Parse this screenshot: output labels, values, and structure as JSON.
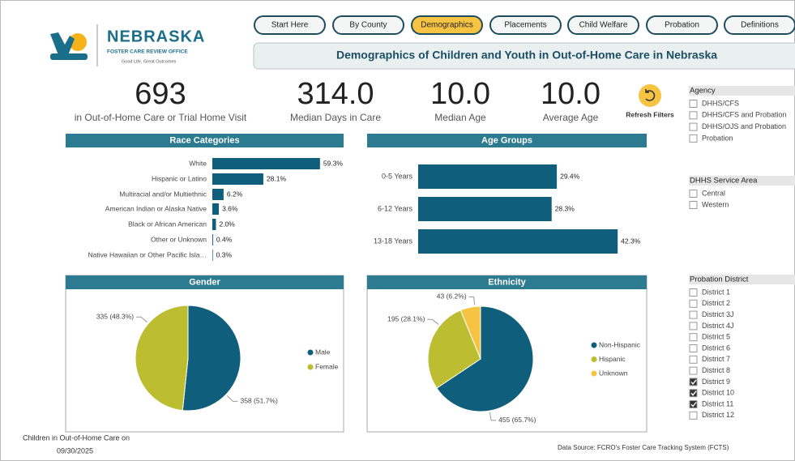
{
  "header": {
    "logo_name": "NEBRASKA",
    "logo_office": "FOSTER CARE REVIEW OFFICE",
    "logo_tagline": "Good Life, Great Outcomes"
  },
  "nav": {
    "items": [
      "Start Here",
      "By County",
      "Demographics",
      "Placements",
      "Child Welfare",
      "Probation",
      "Definitions"
    ],
    "active": 2
  },
  "page_title": "Demographics of Children and Youth in Out-of-Home Care in Nebraska",
  "kpis": [
    {
      "value": "693",
      "caption": "in Out-of-Home Care or Trial Home Visit"
    },
    {
      "value": "314.0",
      "caption": "Median Days in Care"
    },
    {
      "value": "10.0",
      "caption": "Median Age"
    },
    {
      "value": "10.0",
      "caption": "Average Age"
    }
  ],
  "refresh": "Refresh Filters",
  "slicers": [
    {
      "title": "Agency",
      "options": [
        {
          "label": "DHHS/CFS",
          "checked": false
        },
        {
          "label": "DHHS/CFS and Probation",
          "checked": false
        },
        {
          "label": "DHHS/OJS and Probation",
          "checked": false
        },
        {
          "label": "Probation",
          "checked": false
        }
      ]
    },
    {
      "title": "DHHS Service Area",
      "options": [
        {
          "label": "Central",
          "checked": false
        },
        {
          "label": "Western",
          "checked": false
        }
      ]
    },
    {
      "title": "Probation District",
      "options": [
        {
          "label": "District 1",
          "checked": false
        },
        {
          "label": "District 2",
          "checked": false
        },
        {
          "label": "District 3J",
          "checked": false
        },
        {
          "label": "District 4J",
          "checked": false
        },
        {
          "label": "District 5",
          "checked": false
        },
        {
          "label": "District 6",
          "checked": false
        },
        {
          "label": "District 7",
          "checked": false
        },
        {
          "label": "District 8",
          "checked": false
        },
        {
          "label": "District 9",
          "checked": true
        },
        {
          "label": "District 10",
          "checked": true
        },
        {
          "label": "District 11",
          "checked": true
        },
        {
          "label": "District 12",
          "checked": false
        }
      ]
    }
  ],
  "footer": {
    "date_caption": "Children in Out-of-Home Care on",
    "date": "09/30/2025",
    "source": "Data Source: FCRO's Foster Care Tracking System (FCTS)"
  },
  "chart_data": [
    {
      "type": "hbar",
      "title": "Race Categories",
      "color": "#0f5f7c",
      "categories": [
        "White",
        "Hispanic or Latino",
        "Multiracial and/or Multiethnic",
        "American Indian or Alaska Native",
        "Black or African American",
        "Other or Unknown",
        "Native Hawaiian or Other Pacific Isla…"
      ],
      "values": [
        59.3,
        28.1,
        6.2,
        3.6,
        2.0,
        0.4,
        0.3
      ],
      "value_labels": [
        "59.3%",
        "28.1%",
        "6.2%",
        "3.6%",
        "2.0%",
        "0.4%",
        "0.3%"
      ]
    },
    {
      "type": "hbar",
      "title": "Age Groups",
      "color": "#0f5f7c",
      "categories": [
        "0-5 Years",
        "6-12 Years",
        "13-18 Years"
      ],
      "values": [
        29.4,
        28.3,
        42.3
      ],
      "value_labels": [
        "29.4%",
        "28.3%",
        "42.3%"
      ]
    },
    {
      "type": "pie",
      "title": "Gender",
      "categories": [
        "Male",
        "Female"
      ],
      "values": [
        358,
        335
      ],
      "value_labels": [
        "358 (51.7%)",
        "335 (48.3%)"
      ],
      "colors": [
        "#0f5f7c",
        "#bcbd31"
      ]
    },
    {
      "type": "pie",
      "title": "Ethnicity",
      "categories": [
        "Non-Hispanic",
        "Hispanic",
        "Unknown"
      ],
      "values": [
        455,
        195,
        43
      ],
      "value_labels": [
        "455 (65.7%)",
        "195 (28.1%)",
        "43 (6.2%)"
      ],
      "colors": [
        "#0f5f7c",
        "#bcbd31",
        "#f6c343"
      ]
    }
  ]
}
